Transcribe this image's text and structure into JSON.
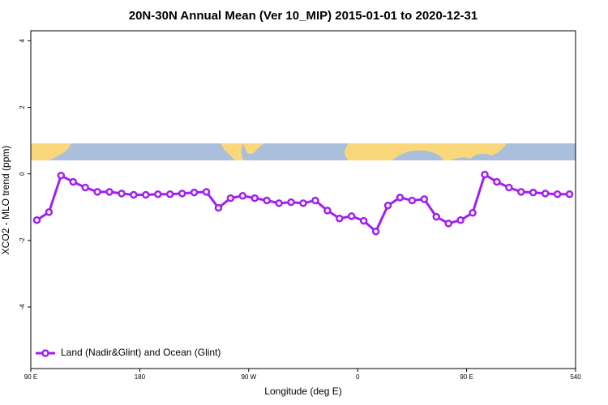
{
  "chart_data": {
    "type": "line",
    "title": "20N-30N Annual Mean (Ver 10_MIP)   2015-01-01 to 2020-12-31",
    "x_label": "Longitude (deg E)",
    "y_label": "XCO2 - MLO trend (ppm)",
    "x": [
      95,
      105,
      115,
      125,
      135,
      145,
      155,
      165,
      175,
      185,
      195,
      205,
      215,
      225,
      235,
      245,
      255,
      265,
      275,
      285,
      295,
      305,
      315,
      325,
      335,
      345,
      355,
      365,
      375,
      385,
      395,
      405,
      415,
      425,
      435,
      445,
      455,
      465,
      475,
      485,
      495,
      505,
      515,
      525,
      535
    ],
    "series": [
      {
        "name": "Land (Nadir&Glint) and Ocean (Glint)",
        "color": "#a020f0",
        "values": [
          -1.39,
          -1.15,
          -0.05,
          -0.24,
          -0.41,
          -0.54,
          -0.54,
          -0.59,
          -0.63,
          -0.63,
          -0.61,
          -0.61,
          -0.59,
          -0.56,
          -0.54,
          -1.02,
          -0.73,
          -0.66,
          -0.73,
          -0.8,
          -0.88,
          -0.85,
          -0.88,
          -0.8,
          -1.1,
          -1.34,
          -1.27,
          -1.41,
          -1.73,
          -0.95,
          -0.71,
          -0.8,
          -0.76,
          -1.29,
          -1.49,
          -1.39,
          -1.17,
          -0.02,
          -0.24,
          -0.41,
          -0.54,
          -0.56,
          -0.59,
          -0.61,
          -0.61
        ]
      }
    ],
    "xlim": [
      90,
      540
    ],
    "xticks": [
      {
        "value": 90,
        "label": "90 E"
      },
      180,
      {
        "value": 270,
        "label": "90 W"
      },
      {
        "value": 360,
        "label": "0"
      },
      {
        "value": 450,
        "label": "90 E"
      },
      540
    ],
    "ylim": [
      -5.85,
      4.3
    ],
    "yticks": [
      -4,
      -2,
      0,
      2,
      4
    ],
    "legend": "bottom-left"
  }
}
